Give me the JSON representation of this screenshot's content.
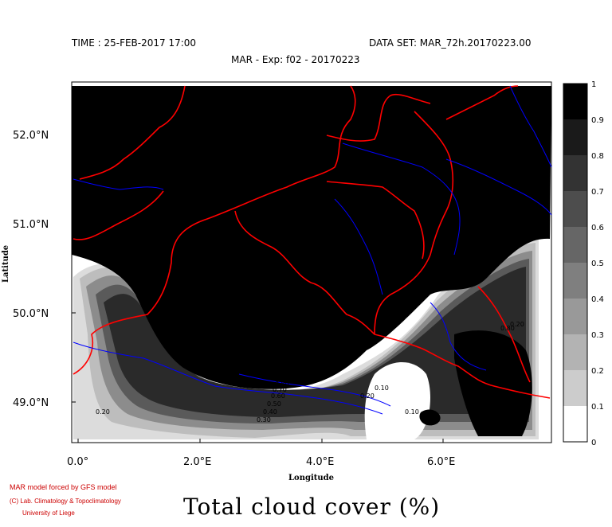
{
  "header": {
    "time": "TIME : 25-FEB-2017 17:00",
    "dataset": "DATA SET: MAR_72h.20170223.00",
    "experiment": "MAR - Exp: f02 - 20170223"
  },
  "axes": {
    "ylabel": "Latitude",
    "xlabel": "Longitude",
    "yticks": [
      "52.0°N",
      "51.0°N",
      "50.0°N",
      "49.0°N"
    ],
    "xticks": [
      "0.0°",
      "2.0°E",
      "4.0°E",
      "6.0°E"
    ]
  },
  "colorbar": {
    "labels": [
      "1",
      "0.9",
      "0.8",
      "0.7",
      "0.6",
      "0.5",
      "0.4",
      "0.3",
      "0.2",
      "0.1",
      "0"
    ],
    "colors": [
      "#000000",
      "#1a1a1a",
      "#333333",
      "#4d4d4d",
      "#666666",
      "#7f7f7f",
      "#999999",
      "#b3b3b3",
      "#cccccc",
      "#e6e6e6",
      "#ffffff"
    ]
  },
  "contour_labels": [
    "0.20",
    "0.30",
    "0.40",
    "0.50",
    "0.60",
    "0.70",
    "0.80",
    "0.20",
    "0.10",
    "0.10",
    "0.80",
    "0.20"
  ],
  "map_colors": {
    "borders": "#ff0000",
    "rivers": "#0000ff"
  },
  "credits": {
    "line1": "MAR model forced by GFS model",
    "line2": "(C) Lab. Climatology & Topoclimatology",
    "line3": "University of Liege"
  },
  "title": "Total cloud cover (%)"
}
